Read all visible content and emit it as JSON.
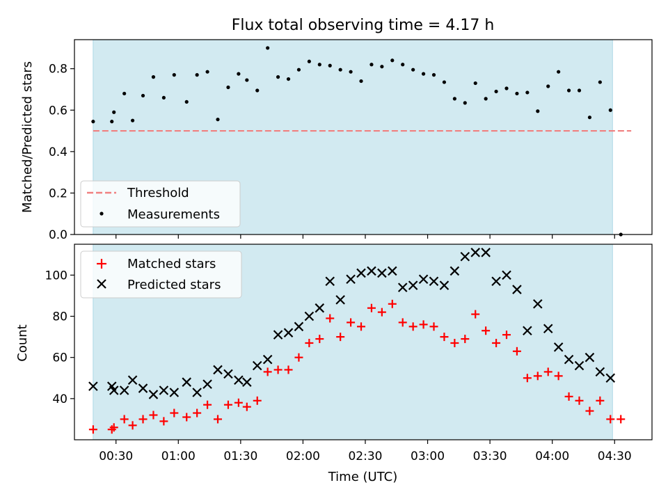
{
  "figure": {
    "title": "Flux total observing time = 4.17 h"
  },
  "chart_data": [
    {
      "type": "scatter",
      "ylabel": "Matched/Predicted stars",
      "ylim": [
        0,
        0.94
      ],
      "yticks": [
        0.0,
        0.2,
        0.4,
        0.6,
        0.8
      ],
      "ytick_labels": [
        "0.0",
        "0.2",
        "0.4",
        "0.6",
        "0.8"
      ],
      "grid": false,
      "legend_position": "lower-left",
      "shaded_span_color": "#add8e6",
      "threshold": {
        "name": "Threshold",
        "value": 0.5,
        "color": "#f08080",
        "style": "dashed",
        "x_range": [
          "00:19",
          "04:38"
        ]
      },
      "series": [
        {
          "name": "Measurements",
          "color": "#000000",
          "marker": "dot",
          "x": [
            "00:19",
            "00:28",
            "00:29",
            "00:34",
            "00:38",
            "00:43",
            "00:48",
            "00:53",
            "00:58",
            "01:04",
            "01:09",
            "01:14",
            "01:19",
            "01:24",
            "01:29",
            "01:33",
            "01:38",
            "01:43",
            "01:48",
            "01:53",
            "01:58",
            "02:03",
            "02:08",
            "02:13",
            "02:18",
            "02:23",
            "02:28",
            "02:33",
            "02:38",
            "02:43",
            "02:48",
            "02:53",
            "02:58",
            "03:03",
            "03:08",
            "03:13",
            "03:18",
            "03:23",
            "03:28",
            "03:33",
            "03:38",
            "03:43",
            "03:48",
            "03:53",
            "03:58",
            "04:03",
            "04:08",
            "04:13",
            "04:18",
            "04:23",
            "04:28",
            "04:33"
          ],
          "y": [
            0.545,
            0.545,
            0.59,
            0.68,
            0.55,
            0.67,
            0.76,
            0.66,
            0.77,
            0.64,
            0.77,
            0.785,
            0.555,
            0.71,
            0.775,
            0.745,
            0.695,
            0.9,
            0.76,
            0.75,
            0.795,
            0.835,
            0.82,
            0.815,
            0.795,
            0.785,
            0.74,
            0.82,
            0.81,
            0.84,
            0.82,
            0.795,
            0.775,
            0.77,
            0.735,
            0.655,
            0.635,
            0.73,
            0.655,
            0.69,
            0.705,
            0.68,
            0.685,
            0.595,
            0.715,
            0.785,
            0.695,
            0.695,
            0.565,
            0.735,
            0.6,
            0.0
          ]
        }
      ]
    },
    {
      "type": "scatter",
      "xlabel": "Time (UTC)",
      "ylabel": "Count",
      "ylim": [
        20,
        115
      ],
      "yticks": [
        40,
        60,
        80,
        100
      ],
      "ytick_labels": [
        "40",
        "60",
        "80",
        "100"
      ],
      "xlim": [
        "00:10",
        "04:48"
      ],
      "xticks": [
        "00:30",
        "01:00",
        "01:30",
        "02:00",
        "02:30",
        "03:00",
        "03:30",
        "04:00",
        "04:30"
      ],
      "grid": false,
      "legend_position": "upper-left",
      "shaded_span": [
        "00:19",
        "04:29"
      ],
      "shaded_span_color": "#add8e6",
      "series": [
        {
          "name": "Matched stars",
          "color": "#ff0000",
          "marker": "plus",
          "x": [
            "00:19",
            "00:28",
            "00:29",
            "00:34",
            "00:38",
            "00:43",
            "00:48",
            "00:53",
            "00:58",
            "01:04",
            "01:09",
            "01:14",
            "01:19",
            "01:24",
            "01:29",
            "01:33",
            "01:38",
            "01:43",
            "01:48",
            "01:53",
            "01:58",
            "02:03",
            "02:08",
            "02:13",
            "02:18",
            "02:23",
            "02:28",
            "02:33",
            "02:38",
            "02:43",
            "02:48",
            "02:53",
            "02:58",
            "03:03",
            "03:08",
            "03:13",
            "03:18",
            "03:23",
            "03:28",
            "03:33",
            "03:38",
            "03:43",
            "03:48",
            "03:53",
            "03:58",
            "04:03",
            "04:08",
            "04:13",
            "04:18",
            "04:23",
            "04:28",
            "04:33"
          ],
          "y": [
            25,
            25,
            26,
            30,
            27,
            30,
            32,
            29,
            33,
            31,
            33,
            37,
            30,
            37,
            38,
            36,
            39,
            53,
            54,
            54,
            60,
            67,
            69,
            79,
            70,
            77,
            75,
            84,
            82,
            86,
            77,
            75,
            76,
            75,
            70,
            67,
            69,
            81,
            73,
            67,
            71,
            63,
            50,
            51,
            53,
            51,
            41,
            39,
            34,
            39,
            30,
            30
          ]
        },
        {
          "name": "Predicted stars",
          "color": "#000000",
          "marker": "x",
          "x": [
            "00:19",
            "00:28",
            "00:29",
            "00:34",
            "00:38",
            "00:43",
            "00:48",
            "00:53",
            "00:58",
            "01:04",
            "01:09",
            "01:14",
            "01:19",
            "01:24",
            "01:29",
            "01:33",
            "01:38",
            "01:43",
            "01:48",
            "01:53",
            "01:58",
            "02:03",
            "02:08",
            "02:13",
            "02:18",
            "02:23",
            "02:28",
            "02:33",
            "02:38",
            "02:43",
            "02:48",
            "02:53",
            "02:58",
            "03:03",
            "03:08",
            "03:13",
            "03:18",
            "03:23",
            "03:28",
            "03:33",
            "03:38",
            "03:43",
            "03:48",
            "03:53",
            "03:58",
            "04:03",
            "04:08",
            "04:13",
            "04:18",
            "04:23",
            "04:28"
          ],
          "y": [
            46,
            46,
            44,
            44,
            49,
            45,
            42,
            44,
            43,
            48,
            43,
            47,
            54,
            52,
            49,
            48,
            56,
            59,
            71,
            72,
            75,
            80,
            84,
            97,
            88,
            98,
            101,
            102,
            101,
            102,
            94,
            95,
            98,
            97,
            95,
            102,
            109,
            111,
            111,
            97,
            100,
            93,
            73,
            86,
            74,
            65,
            59,
            56,
            60,
            53,
            50
          ]
        }
      ]
    }
  ]
}
